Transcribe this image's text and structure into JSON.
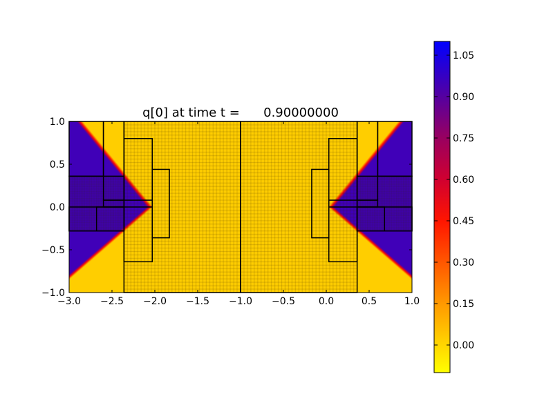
{
  "chart_data": {
    "type": "heatmap",
    "title": "q[0] at time t =      0.90000000",
    "xlim": [
      -3,
      1
    ],
    "ylim": [
      -1,
      1
    ],
    "xticks": [
      -3.0,
      -2.5,
      -2.0,
      -1.5,
      -1.0,
      -0.5,
      0.0,
      0.5,
      1.0
    ],
    "xtick_labels": [
      "−3.0",
      "−2.5",
      "−2.0",
      "−1.5",
      "−1.0",
      "−0.5",
      "0.0",
      "0.5",
      "1.0"
    ],
    "yticks": [
      1.0,
      0.5,
      0.0,
      -0.5,
      -1.0
    ],
    "ytick_labels": [
      "1.0",
      "0.5",
      "0.0",
      "−0.5",
      "−1.0"
    ],
    "colorbar": {
      "range": [
        -0.1,
        1.1
      ],
      "ticks": [
        1.05,
        0.9,
        0.75,
        0.6,
        0.45,
        0.3,
        0.15,
        0.0
      ],
      "tick_labels": [
        "1.05",
        "0.90",
        "0.75",
        "0.60",
        "0.45",
        "0.30",
        "0.15",
        "0.00"
      ],
      "colormap": [
        {
          "value": -0.1,
          "color": "#ffff00"
        },
        {
          "value": 0.15,
          "color": "#ff9900"
        },
        {
          "value": 0.45,
          "color": "#ff1500"
        },
        {
          "value": 0.6,
          "color": "#d00030"
        },
        {
          "value": 0.75,
          "color": "#990060"
        },
        {
          "value": 0.9,
          "color": "#5500a0"
        },
        {
          "value": 1.1,
          "color": "#0000ff"
        }
      ]
    },
    "field": {
      "description_values": "q=1 inside wedges, q=0 elsewhere",
      "wedge_apex": [
        -2.02,
        0.0
      ],
      "wedge_top_x_at_y1": -2.84,
      "wedge_bottom_y_at_xmin": -0.85,
      "mirror_x": -1.0,
      "max_value": 1.0,
      "min_value": 0.0
    },
    "patches_left": [
      [
        -3.0,
        -2.6,
        0.36,
        1.0
      ],
      [
        -2.6,
        -2.36,
        0.08,
        1.0
      ],
      [
        -3.0,
        -2.36,
        -0.28,
        0.36
      ],
      [
        -3.0,
        -2.36,
        -0.28,
        0.0
      ],
      [
        -2.68,
        -2.36,
        -0.28,
        0.0
      ],
      [
        -2.6,
        -2.03,
        0.0,
        0.08
      ],
      [
        -2.36,
        -2.03,
        -0.64,
        0.8
      ],
      [
        -2.03,
        -1.83,
        -0.36,
        0.44
      ],
      [
        -2.36,
        -1.0,
        -1.0,
        1.0
      ]
    ]
  }
}
